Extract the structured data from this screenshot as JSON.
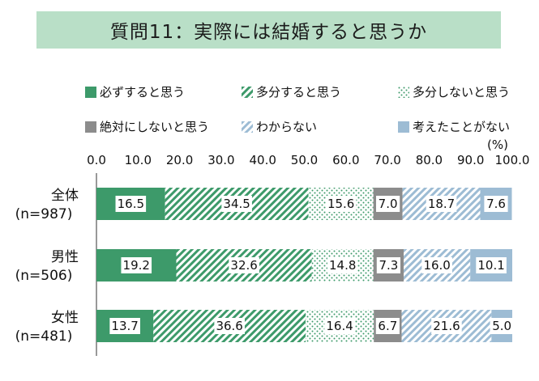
{
  "title": "質問11：実際には結婚すると思うか",
  "unit_label": "(%)",
  "chart_data": {
    "type": "bar",
    "orientation": "horizontal",
    "stacked": true,
    "title": "質問11：実際には結婚すると思うか",
    "xlim": [
      0,
      100
    ],
    "x_ticks": [
      "0.0",
      "10.0",
      "20.0",
      "30.0",
      "40.0",
      "50.0",
      "60.0",
      "70.0",
      "80.0",
      "90.0",
      "100.0"
    ],
    "x_unit": "(%)",
    "legend_position": "top",
    "categories": [
      {
        "label": "全体",
        "sub": "(n=987)"
      },
      {
        "label": "男性",
        "sub": "(n=506)"
      },
      {
        "label": "女性",
        "sub": "(n=481)"
      }
    ],
    "series": [
      {
        "name": "必ずすると思う",
        "color": "#3d9a6a",
        "pattern": "solid",
        "values": [
          16.5,
          19.2,
          13.7
        ]
      },
      {
        "name": "多分すると思う",
        "color": "#3d9a6a",
        "pattern": "diagonal",
        "values": [
          34.5,
          32.6,
          36.6
        ]
      },
      {
        "name": "多分しないと思う",
        "color": "#3d9a6a",
        "pattern": "dots",
        "values": [
          15.6,
          14.8,
          16.4
        ]
      },
      {
        "name": "絶対にしないと思う",
        "color": "#8c8c8c",
        "pattern": "solid",
        "values": [
          7.0,
          7.3,
          6.7
        ]
      },
      {
        "name": "わからない",
        "color": "#8fb0c8",
        "pattern": "diagonal",
        "values": [
          18.7,
          16.0,
          21.6
        ]
      },
      {
        "name": "考えたことがない",
        "color": "#9dbcd4",
        "pattern": "solid",
        "values": [
          7.6,
          10.1,
          5.0
        ]
      }
    ],
    "value_labels": [
      [
        "16.5",
        "34.5",
        "15.6",
        "7.0",
        "18.7",
        "7.6"
      ],
      [
        "19.2",
        "32.6",
        "14.8",
        "7.3",
        "16.0",
        "10.1"
      ],
      [
        "13.7",
        "36.6",
        "16.4",
        "6.7",
        "21.6",
        "5.0"
      ]
    ],
    "grid": false
  }
}
